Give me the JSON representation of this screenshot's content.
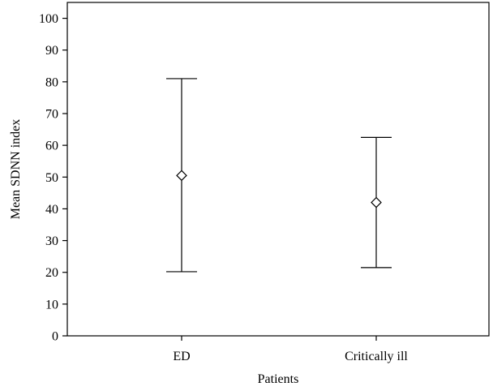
{
  "chart_data": {
    "type": "scatter",
    "title": "",
    "xlabel": "Patients",
    "ylabel": "Mean SDNN index",
    "ylim": [
      0,
      105
    ],
    "yticks": [
      0,
      10,
      20,
      30,
      40,
      50,
      60,
      70,
      80,
      90,
      100
    ],
    "categories": [
      "ED",
      "Critically ill"
    ],
    "series": [
      {
        "marker": "diamond",
        "mean": [
          50.5,
          42
        ],
        "lower": [
          20.2,
          21.5
        ],
        "upper": [
          81,
          62.5
        ]
      }
    ],
    "grid": false,
    "legend": "none",
    "colors": {
      "line": "#000000",
      "marker_fill": "#ffffff"
    }
  }
}
